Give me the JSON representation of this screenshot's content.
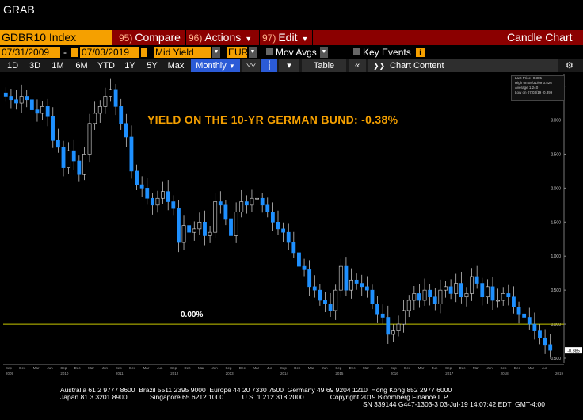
{
  "top": {
    "grab": "GRAB"
  },
  "toolbar": {
    "ticker": "GDBR10 Index",
    "compare": {
      "num": "95)",
      "label": "Compare"
    },
    "actions": {
      "num": "96)",
      "label": "Actions"
    },
    "edit": {
      "num": "97)",
      "label": "Edit"
    },
    "chart_type": "Candle Chart"
  },
  "options": {
    "start_date": "07/31/2009",
    "dash": "-",
    "end_date": "07/03/2019",
    "field": "Mid Yield",
    "currency": "EUR",
    "mov_avgs": "Mov Avgs",
    "key_events": "Key Events"
  },
  "periods": {
    "items": [
      "1D",
      "3D",
      "1M",
      "6M",
      "YTD",
      "1Y",
      "5Y",
      "Max"
    ],
    "frequency": "Monthly",
    "table": "Table",
    "chart_content": "Chart Content"
  },
  "legend": {
    "last_price": "Last Price   -0.385",
    "high": "High on 08/31/09   3.526",
    "average": "Average   1.240",
    "low": "Low on 07/03/19   -0.399"
  },
  "annotations": {
    "title": "YIELD ON THE 10-YR GERMAN BUND: -0.38%",
    "zero_label": "0.00%"
  },
  "colors": {
    "accent": "#f5a000",
    "menu_bar": "#8b0000",
    "candle": "#1e90ff",
    "zero_line": "#c8c800"
  },
  "chart_data": {
    "type": "candlestick",
    "frequency": "Monthly",
    "ylim": [
      -0.5,
      3.6
    ],
    "y_ticks": [
      "3.500",
      "3.000",
      "2.500",
      "2.000",
      "1.500",
      "1.000",
      "0.500",
      "0.000",
      "-0.500"
    ],
    "last_value_label": "-0.385",
    "x_months": [
      "Sep",
      "Dec",
      "Mar",
      "Jun",
      "Sep",
      "Dec",
      "Mar",
      "Jun",
      "Sep",
      "Dec",
      "Mar",
      "Jun",
      "Sep",
      "Dec",
      "Mar",
      "Jun",
      "Sep",
      "Dec",
      "Mar",
      "Jun",
      "Sep",
      "Dec",
      "Mar",
      "Jun",
      "Sep",
      "Dec",
      "Mar",
      "Jun",
      "Sep",
      "Dec",
      "Mar",
      "Jun",
      "Sep",
      "Dec",
      "Mar",
      "Jun",
      "Sep",
      "Dec",
      "Mar",
      "Jun"
    ],
    "x_years": [
      "2009",
      "2010",
      "2011",
      "2012",
      "2013",
      "2014",
      "2015",
      "2016",
      "2017",
      "2018",
      "2019"
    ],
    "reference_line": 0.0,
    "closes": [
      3.35,
      3.3,
      3.25,
      3.35,
      3.3,
      3.15,
      3.1,
      3.2,
      3.05,
      2.7,
      2.6,
      2.3,
      2.55,
      2.4,
      2.2,
      2.5,
      2.95,
      3.1,
      3.2,
      3.35,
      3.45,
      3.2,
      2.95,
      2.75,
      2.25,
      2.05,
      2.0,
      1.85,
      1.75,
      1.85,
      1.95,
      1.8,
      1.7,
      1.2,
      1.45,
      1.35,
      1.4,
      1.5,
      1.3,
      1.35,
      1.8,
      1.75,
      1.55,
      1.3,
      1.65,
      1.8,
      1.75,
      1.85,
      1.85,
      1.75,
      1.65,
      1.5,
      1.4,
      1.35,
      1.2,
      1.05,
      0.85,
      0.8,
      0.55,
      0.5,
      0.35,
      0.3,
      0.2,
      0.5,
      0.85,
      0.5,
      0.65,
      0.6,
      0.55,
      0.5,
      0.3,
      0.15,
      0.1,
      -0.15,
      -0.1,
      0.0,
      0.2,
      0.35,
      0.45,
      0.35,
      0.5,
      0.4,
      0.3,
      0.5,
      0.55,
      0.45,
      0.6,
      0.4,
      0.45,
      0.7,
      0.6,
      0.4,
      0.55,
      0.35,
      0.35,
      0.45,
      0.4,
      0.25,
      0.15,
      0.1,
      0.0,
      -0.1,
      -0.2,
      -0.3,
      -0.385
    ]
  },
  "footer": {
    "line1": "Australia 61 2 9777 8600  Brazil 5511 2395 9000  Europe 44 20 7330 7500  Germany 49 69 9204 1210  Hong Kong 852 2977 6000",
    "line2": "Japan 81 3 3201 8900            Singapore 65 6212 1000          U.S. 1 212 318 2000              Copyright 2019 Bloomberg Finance L.P.",
    "line3": "SN 339144 G447-1303-3 03-Jul-19 14:07:42 EDT  GMT-4:00"
  }
}
